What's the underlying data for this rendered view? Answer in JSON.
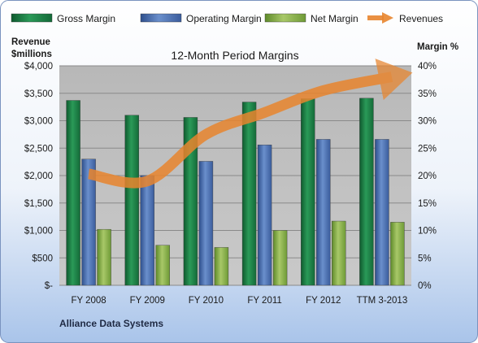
{
  "chart_data": {
    "type": "bar",
    "title": "12-Month Period Margins",
    "footer": "Alliance Data Systems",
    "categories": [
      "FY 2008",
      "FY 2009",
      "FY 2010",
      "FY 2011",
      "FY 2012",
      "TTM 3-2013"
    ],
    "left_axis": {
      "title_line1": "Revenue",
      "title_line2": "$millions",
      "ticks": [
        "$-",
        "$500",
        "$1,000",
        "$1,500",
        "$2,000",
        "$2,500",
        "$3,000",
        "$3,500",
        "$4,000"
      ],
      "ylim": [
        0,
        4000
      ]
    },
    "right_axis": {
      "title": "Margin %",
      "ticks": [
        "0%",
        "5%",
        "10%",
        "15%",
        "20%",
        "25%",
        "30%",
        "35%",
        "40%"
      ],
      "ylim": [
        0,
        40
      ]
    },
    "series": [
      {
        "name": "Gross Margin",
        "kind": "bar",
        "axis": "right",
        "color": "#1e7a44",
        "values": [
          33.7,
          31.0,
          30.6,
          33.4,
          34.0,
          34.1
        ]
      },
      {
        "name": "Operating Margin",
        "kind": "bar",
        "axis": "right",
        "color": "#4a6fb0",
        "values": [
          23.0,
          20.0,
          22.6,
          25.6,
          26.6,
          26.6
        ]
      },
      {
        "name": "Net Margin",
        "kind": "bar",
        "axis": "right",
        "color": "#8ab04a",
        "values": [
          10.2,
          7.3,
          6.9,
          10.0,
          11.7,
          11.5
        ]
      },
      {
        "name": "Revenues",
        "kind": "line",
        "axis": "left",
        "color": "#e8852e",
        "values": [
          2030,
          1900,
          2750,
          3150,
          3550,
          3800
        ]
      }
    ],
    "grid": true,
    "legend_position": "top"
  }
}
